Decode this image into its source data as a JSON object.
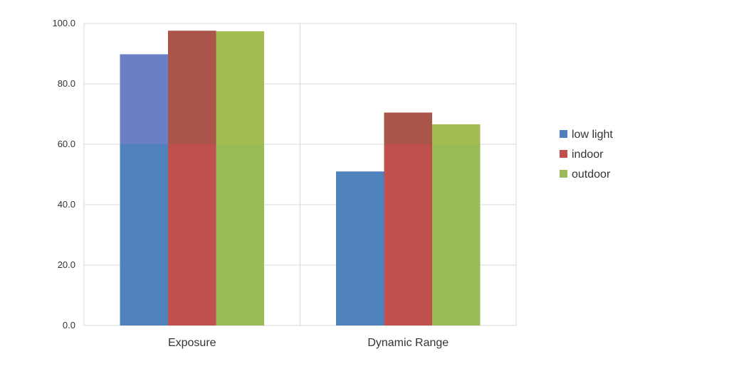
{
  "chart_data": {
    "type": "bar",
    "categories": [
      "Exposure",
      "Dynamic Range"
    ],
    "series": [
      {
        "name": "low light",
        "color": "#4f81bd",
        "values": [
          89.8,
          51.0
        ]
      },
      {
        "name": "indoor",
        "color": "#c0504d",
        "values": [
          97.6,
          70.5
        ]
      },
      {
        "name": "outdoor",
        "color": "#9bbb59",
        "values": [
          97.4,
          66.6
        ]
      }
    ],
    "ylim": [
      0,
      100
    ],
    "yticks": [
      "0.0",
      "20.0",
      "40.0",
      "60.0",
      "80.0",
      "100.0"
    ],
    "grid": true,
    "legend_position": "right",
    "highlight": {
      "from_value": 60,
      "series_colors": [
        "#6b7fc6",
        "#a9554a",
        "#a3bc4f"
      ]
    }
  }
}
